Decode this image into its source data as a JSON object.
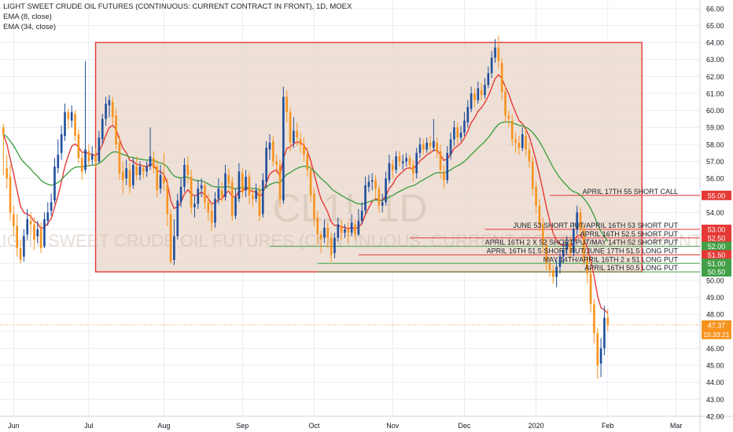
{
  "chart_data": {
    "type": "candlestick",
    "title": "LIGHT SWEET CRUDE OIL FUTURES (CONTINUOUS: CURRENT CONTRACT IN FRONT), 1D, MOEX",
    "watermark_symbol": "CL1!, 1D",
    "watermark_name": "LIGHT SWEET CRUDE OIL FUTURES (CONTINUOUS: CURRENT CONTRACT IN FRONT)",
    "indicators": [
      {
        "name": "EMA (8, close)",
        "color": "#e53935"
      },
      {
        "name": "EMA (34, close)",
        "color": "#43a047"
      }
    ],
    "x_axis": {
      "ticks": [
        {
          "label": "Jun",
          "x": 0
        },
        {
          "label": "Jul",
          "x": 22
        },
        {
          "label": "Aug",
          "x": 44
        },
        {
          "label": "Sep",
          "x": 67
        },
        {
          "label": "Oct",
          "x": 88
        },
        {
          "label": "Nov",
          "x": 111
        },
        {
          "label": "Dec",
          "x": 132
        },
        {
          "label": "2020",
          "x": 153
        },
        {
          "label": "Feb",
          "x": 174
        },
        {
          "label": "Mar",
          "x": 194
        }
      ],
      "range": [
        -4,
        201
      ]
    },
    "y_axis": {
      "range": [
        42,
        66.5
      ],
      "ticks": [
        42,
        43,
        44,
        45,
        46,
        47,
        48,
        49,
        50,
        51,
        52,
        53,
        54,
        55,
        56,
        57,
        58,
        59,
        60,
        61,
        62,
        63,
        64,
        65,
        66
      ],
      "position": "right"
    },
    "candles": [
      [
        -3,
        59.0,
        58.6,
        59.2,
        56.2
      ],
      [
        -2,
        56.6,
        56.0,
        57.4,
        55.4
      ],
      [
        -1,
        56.1,
        54.0,
        56.8,
        53.5
      ],
      [
        0,
        53.9,
        53.2,
        54.4,
        52.6
      ],
      [
        1,
        53.2,
        51.9,
        53.9,
        51.4
      ],
      [
        2,
        51.9,
        51.2,
        52.4,
        51.0
      ],
      [
        3,
        51.4,
        52.6,
        53.0,
        51.1
      ],
      [
        4,
        52.7,
        53.6,
        54.2,
        52.4
      ],
      [
        5,
        53.5,
        53.3,
        54.0,
        52.7
      ],
      [
        6,
        53.3,
        52.4,
        53.7,
        51.8
      ],
      [
        7,
        52.6,
        53.0,
        53.5,
        52.2
      ],
      [
        8,
        53.0,
        51.9,
        53.4,
        51.6
      ],
      [
        9,
        52.0,
        53.6,
        54.0,
        51.9
      ],
      [
        10,
        53.5,
        54.0,
        54.6,
        53.2
      ],
      [
        11,
        54.1,
        54.6,
        55.1,
        53.8
      ],
      [
        12,
        54.7,
        56.7,
        57.2,
        54.5
      ],
      [
        13,
        56.6,
        57.4,
        58.3,
        56.3
      ],
      [
        14,
        57.5,
        58.6,
        59.1,
        57.1
      ],
      [
        15,
        58.5,
        59.9,
        60.4,
        58.2
      ],
      [
        16,
        59.9,
        59.5,
        60.1,
        58.9
      ],
      [
        17,
        59.4,
        59.9,
        60.3,
        59.0
      ],
      [
        18,
        59.8,
        58.5,
        60.0,
        58.2
      ],
      [
        19,
        58.6,
        57.2,
        58.9,
        56.9
      ],
      [
        20,
        57.2,
        56.4,
        57.6,
        55.9
      ],
      [
        21,
        56.5,
        57.7,
        62.9,
        56.3
      ],
      [
        22,
        57.6,
        57.0,
        58.0,
        56.7
      ],
      [
        23,
        57.1,
        57.4,
        57.9,
        56.8
      ],
      [
        24,
        57.3,
        57.0,
        57.8,
        56.6
      ],
      [
        25,
        57.0,
        58.4,
        58.8,
        56.9
      ],
      [
        26,
        58.3,
        59.5,
        59.8,
        58.0
      ],
      [
        27,
        59.5,
        60.4,
        60.8,
        59.1
      ],
      [
        28,
        60.3,
        60.6,
        60.9,
        59.6
      ],
      [
        29,
        60.5,
        59.6,
        60.8,
        59.2
      ],
      [
        30,
        59.7,
        58.0,
        60.1,
        57.7
      ],
      [
        31,
        58.1,
        56.3,
        58.5,
        55.9
      ],
      [
        32,
        56.4,
        55.9,
        57.0,
        55.1
      ],
      [
        33,
        56.0,
        56.6,
        57.1,
        55.6
      ],
      [
        34,
        56.5,
        55.5,
        56.9,
        55.1
      ],
      [
        35,
        55.6,
        56.8,
        57.2,
        55.4
      ],
      [
        36,
        56.7,
        56.2,
        57.3,
        55.9
      ],
      [
        37,
        56.2,
        56.7,
        57.0,
        55.9
      ],
      [
        38,
        56.6,
        56.4,
        56.8,
        56.0
      ],
      [
        39,
        56.4,
        56.7,
        57.0,
        56.1
      ],
      [
        40,
        56.7,
        57.3,
        59.0,
        56.5
      ],
      [
        41,
        57.2,
        56.6,
        57.6,
        56.3
      ],
      [
        42,
        56.7,
        55.3,
        57.1,
        54.9
      ],
      [
        43,
        55.4,
        56.2,
        56.8,
        55.1
      ],
      [
        44,
        56.1,
        55.7,
        57.5,
        55.3
      ],
      [
        45,
        55.6,
        53.9,
        56.0,
        53.2
      ],
      [
        46,
        53.9,
        51.1,
        54.2,
        51.0
      ],
      [
        47,
        51.2,
        52.6,
        53.6,
        50.9
      ],
      [
        48,
        52.6,
        54.7,
        55.1,
        52.4
      ],
      [
        49,
        54.6,
        55.5,
        56.0,
        54.3
      ],
      [
        50,
        55.5,
        56.8,
        57.2,
        55.2
      ],
      [
        51,
        56.8,
        56.2,
        57.3,
        55.7
      ],
      [
        52,
        56.1,
        54.3,
        56.5,
        53.9
      ],
      [
        53,
        54.3,
        54.5,
        55.0,
        53.7
      ],
      [
        54,
        54.5,
        55.4,
        55.9,
        54.2
      ],
      [
        55,
        55.4,
        55.6,
        56.0,
        54.9
      ],
      [
        56,
        55.6,
        54.6,
        55.8,
        54.2
      ],
      [
        57,
        54.6,
        54.0,
        55.1,
        53.5
      ],
      [
        58,
        54.1,
        53.4,
        54.5,
        52.9
      ],
      [
        59,
        53.4,
        54.8,
        55.2,
        53.1
      ],
      [
        60,
        54.8,
        55.4,
        56.0,
        54.5
      ],
      [
        61,
        55.3,
        54.9,
        55.8,
        54.6
      ],
      [
        62,
        54.9,
        56.3,
        56.8,
        54.7
      ],
      [
        63,
        56.2,
        55.7,
        56.6,
        55.2
      ],
      [
        64,
        55.8,
        53.8,
        56.1,
        53.5
      ],
      [
        65,
        53.8,
        54.9,
        55.4,
        53.6
      ],
      [
        66,
        54.8,
        56.4,
        56.9,
        54.6
      ],
      [
        67,
        56.3,
        55.2,
        56.6,
        54.9
      ],
      [
        68,
        55.3,
        56.1,
        56.5,
        54.9
      ],
      [
        69,
        56.1,
        55.0,
        56.4,
        54.5
      ],
      [
        70,
        55.0,
        54.8,
        55.4,
        54.3
      ],
      [
        71,
        54.8,
        55.3,
        55.7,
        54.6
      ],
      [
        72,
        55.3,
        53.8,
        55.6,
        53.5
      ],
      [
        73,
        53.9,
        55.9,
        56.3,
        53.7
      ],
      [
        74,
        55.8,
        57.8,
        58.2,
        55.4
      ],
      [
        75,
        57.7,
        58.1,
        58.6,
        57.1
      ],
      [
        76,
        58.2,
        57.0,
        58.5,
        56.7
      ],
      [
        77,
        57.0,
        56.8,
        57.4,
        56.3
      ],
      [
        78,
        56.8,
        54.8,
        57.1,
        54.3
      ],
      [
        79,
        54.7,
        60.8,
        61.4,
        54.5
      ],
      [
        80,
        60.8,
        59.9,
        61.2,
        59.3
      ],
      [
        81,
        59.9,
        58.1,
        60.2,
        57.6
      ],
      [
        82,
        58.1,
        58.8,
        59.6,
        57.8
      ],
      [
        83,
        58.8,
        58.4,
        59.3,
        57.9
      ],
      [
        84,
        58.3,
        58.0,
        58.7,
        57.5
      ],
      [
        85,
        58.0,
        57.4,
        58.4,
        57.0
      ],
      [
        86,
        57.4,
        56.5,
        57.8,
        56.1
      ],
      [
        87,
        56.5,
        55.0,
        56.8,
        54.6
      ],
      [
        88,
        55.1,
        53.6,
        55.4,
        53.2
      ],
      [
        89,
        53.7,
        52.7,
        54.1,
        52.1
      ],
      [
        90,
        52.7,
        52.4,
        52.9,
        51.6
      ],
      [
        91,
        52.5,
        53.1,
        53.6,
        52.2
      ],
      [
        92,
        53.1,
        52.5,
        53.4,
        51.9
      ],
      [
        93,
        52.5,
        51.5,
        52.8,
        51.1
      ],
      [
        94,
        51.6,
        52.5,
        52.8,
        51.3
      ],
      [
        95,
        52.5,
        53.3,
        53.7,
        52.3
      ],
      [
        96,
        53.2,
        52.8,
        53.5,
        52.4
      ],
      [
        97,
        52.8,
        53.0,
        53.3,
        52.5
      ],
      [
        98,
        53.0,
        52.8,
        53.4,
        52.2
      ],
      [
        99,
        52.8,
        53.4,
        53.9,
        52.6
      ],
      [
        100,
        53.3,
        52.7,
        53.6,
        52.4
      ],
      [
        101,
        52.7,
        53.5,
        54.2,
        52.6
      ],
      [
        102,
        53.5,
        54.1,
        54.6,
        53.3
      ],
      [
        103,
        54.1,
        55.6,
        56.1,
        53.9
      ],
      [
        104,
        55.5,
        55.8,
        56.2,
        55.2
      ],
      [
        105,
        55.8,
        55.9,
        56.3,
        55.3
      ],
      [
        106,
        55.9,
        55.4,
        56.2,
        54.8
      ],
      [
        107,
        55.4,
        54.4,
        55.6,
        54.0
      ],
      [
        108,
        54.4,
        54.6,
        55.1,
        54.0
      ],
      [
        109,
        54.6,
        56.0,
        56.4,
        54.4
      ],
      [
        110,
        55.9,
        56.9,
        57.4,
        55.7
      ],
      [
        111,
        56.8,
        56.5,
        57.1,
        56.0
      ],
      [
        112,
        56.5,
        57.3,
        57.6,
        56.3
      ],
      [
        113,
        57.3,
        57.0,
        57.6,
        56.7
      ],
      [
        114,
        56.9,
        57.0,
        57.4,
        56.5
      ],
      [
        115,
        57.0,
        57.2,
        57.5,
        56.7
      ],
      [
        116,
        57.2,
        56.8,
        57.4,
        56.5
      ],
      [
        117,
        56.8,
        56.3,
        57.1,
        55.8
      ],
      [
        118,
        56.3,
        57.5,
        57.8,
        56.0
      ],
      [
        119,
        57.5,
        58.0,
        58.4,
        57.2
      ],
      [
        120,
        58.0,
        57.7,
        58.3,
        57.4
      ],
      [
        121,
        57.7,
        58.1,
        58.4,
        57.5
      ],
      [
        122,
        58.1,
        57.9,
        58.5,
        57.6
      ],
      [
        123,
        57.8,
        58.2,
        59.5,
        57.6
      ],
      [
        124,
        58.1,
        57.6,
        58.4,
        57.2
      ],
      [
        125,
        57.6,
        56.5,
        58.0,
        56.0
      ],
      [
        126,
        56.4,
        55.9,
        56.8,
        55.4
      ],
      [
        127,
        55.9,
        57.5,
        57.9,
        55.7
      ],
      [
        128,
        57.4,
        58.3,
        58.7,
        57.1
      ],
      [
        129,
        58.3,
        59.0,
        59.4,
        57.9
      ],
      [
        130,
        59.0,
        58.4,
        59.3,
        58.0
      ],
      [
        131,
        58.4,
        58.7,
        59.1,
        58.2
      ],
      [
        132,
        58.7,
        59.4,
        59.9,
        58.5
      ],
      [
        133,
        59.3,
        60.2,
        60.6,
        59.0
      ],
      [
        134,
        60.1,
        61.0,
        61.4,
        59.9
      ],
      [
        135,
        61.0,
        60.6,
        61.3,
        60.2
      ],
      [
        136,
        60.6,
        61.3,
        61.7,
        60.4
      ],
      [
        137,
        61.2,
        60.9,
        61.6,
        60.6
      ],
      [
        138,
        60.9,
        61.5,
        61.9,
        60.7
      ],
      [
        139,
        61.5,
        62.2,
        62.6,
        61.3
      ],
      [
        140,
        62.2,
        63.1,
        63.5,
        61.9
      ],
      [
        141,
        63.1,
        63.7,
        64.2,
        62.8
      ],
      [
        142,
        63.7,
        62.9,
        64.4,
        62.5
      ],
      [
        143,
        62.8,
        61.1,
        63.1,
        60.6
      ],
      [
        144,
        61.1,
        59.7,
        61.5,
        59.3
      ],
      [
        145,
        59.7,
        59.5,
        60.0,
        59.0
      ],
      [
        146,
        59.4,
        58.3,
        59.8,
        57.9
      ],
      [
        147,
        58.3,
        58.1,
        58.7,
        57.5
      ],
      [
        148,
        58.1,
        57.8,
        58.5,
        57.4
      ],
      [
        149,
        57.8,
        58.6,
        59.0,
        57.6
      ],
      [
        150,
        58.5,
        57.7,
        58.9,
        57.3
      ],
      [
        151,
        57.7,
        57.0,
        58.1,
        56.6
      ],
      [
        152,
        57.0,
        55.4,
        57.3,
        55.0
      ],
      [
        153,
        55.5,
        54.4,
        55.8,
        53.9
      ],
      [
        154,
        54.4,
        53.3,
        54.8,
        52.9
      ],
      [
        155,
        53.3,
        52.1,
        53.7,
        51.6
      ],
      [
        156,
        52.1,
        51.0,
        52.4,
        50.6
      ],
      [
        157,
        51.0,
        50.6,
        51.4,
        50.2
      ],
      [
        158,
        50.6,
        50.2,
        50.9,
        49.8
      ],
      [
        159,
        50.2,
        50.8,
        51.2,
        49.6
      ],
      [
        160,
        50.8,
        51.4,
        51.8,
        50.4
      ],
      [
        161,
        51.4,
        51.8,
        52.2,
        51.0
      ],
      [
        162,
        51.8,
        52.2,
        52.6,
        51.5
      ],
      [
        163,
        52.2,
        51.6,
        52.5,
        51.2
      ],
      [
        164,
        51.6,
        53.0,
        53.4,
        51.4
      ],
      [
        165,
        53.0,
        54.0,
        54.4,
        52.7
      ],
      [
        166,
        54.0,
        53.0,
        54.3,
        52.6
      ],
      [
        167,
        53.0,
        51.3,
        53.3,
        50.9
      ],
      [
        168,
        51.3,
        50.4,
        51.6,
        49.8
      ],
      [
        169,
        50.4,
        48.6,
        50.7,
        48.1
      ],
      [
        170,
        48.6,
        46.9,
        48.9,
        46.3
      ],
      [
        171,
        46.9,
        45.0,
        47.2,
        44.2
      ],
      [
        172,
        45.1,
        46.0,
        46.6,
        44.3
      ],
      [
        173,
        46.0,
        47.8,
        48.5,
        45.6
      ],
      [
        174,
        47.8,
        47.4,
        48.3,
        47.0
      ]
    ],
    "shaded_box": {
      "x": [
        24,
        184
      ],
      "y": [
        50.5,
        64.0
      ]
    },
    "annotations": [
      {
        "label": "APRIL 17TH 55 SHORT CALL",
        "price": 55.0,
        "price_label": "55.00",
        "color": "#e53935",
        "from": 157,
        "to": 200
      },
      {
        "label": "JUNE 53 SHORT PUT/APRIL 16TH 53 SHORT PUT",
        "price": 53.0,
        "price_label": "53.00",
        "color": "#e53935",
        "from": 138,
        "to": 200
      },
      {
        "label": "APRIL 16TH 52.5 SHORT PUT",
        "price": 52.5,
        "price_label": "52.50",
        "color": "#e53935",
        "from": 116,
        "to": 200
      },
      {
        "label": "APRIL 16TH 2 X 52 SHORT PUT/MAY 14TH 52 SHORT PUT",
        "price": 52.0,
        "price_label": "52.00",
        "color": "#43a047",
        "from": 75,
        "to": 200
      },
      {
        "label": "APRIL 16TH 51.5 SHORT PUT/JUNE 17TH 51.5 LONG PUT",
        "price": 51.5,
        "price_label": "51.50",
        "color": "#e53935",
        "from": 101,
        "to": 200
      },
      {
        "label": "MAY 14TH/APRIL 16TH 2 x 51 LONG PUT",
        "price": 51.0,
        "price_label": "51.00",
        "color": "#43a047",
        "from": 89,
        "to": 200
      },
      {
        "label": "APRIL 16TH 50.5 LONG PUT",
        "price": 50.5,
        "price_label": "50.50",
        "color": "#43a047",
        "from": 89,
        "to": 200
      }
    ],
    "last_price": {
      "value": 47.37,
      "label": "47.37",
      "countdown": "15:33:21",
      "color": "#f7931e"
    },
    "colors": {
      "up": "#1f4e9c",
      "down": "#f7931e",
      "ema_fast": "#e53935",
      "ema_slow": "#43a047",
      "box_fill": "#e8d5c8",
      "box_border": "#e53935",
      "grid": "#e9ecf1"
    }
  }
}
